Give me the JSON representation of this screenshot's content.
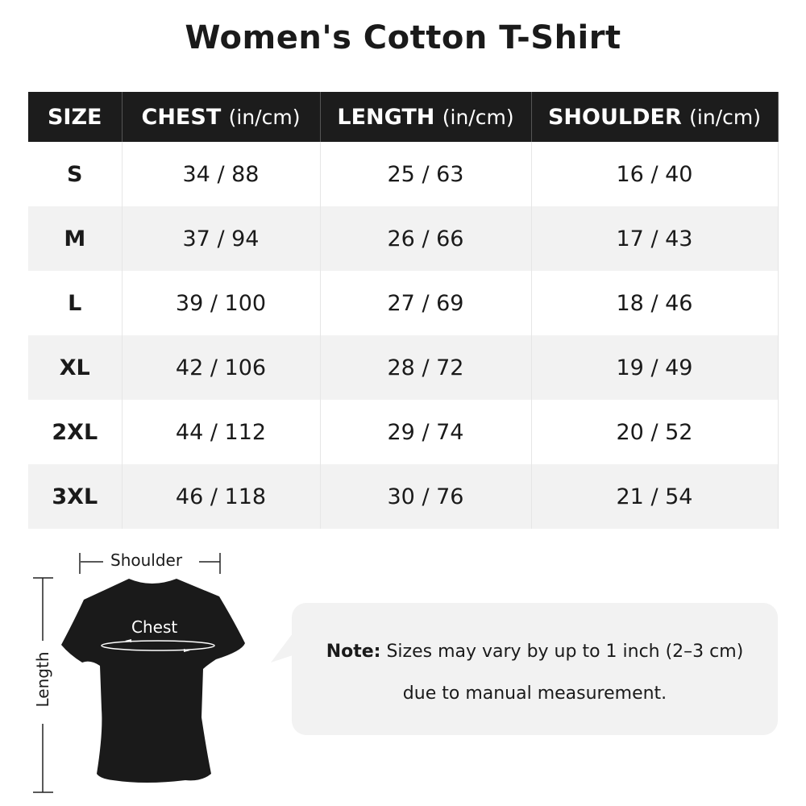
{
  "title": "Women's Cotton T-Shirt",
  "table": {
    "headers": [
      {
        "label": "SIZE",
        "unit": ""
      },
      {
        "label": "CHEST",
        "unit": "(in/cm)"
      },
      {
        "label": "LENGTH",
        "unit": "(in/cm)"
      },
      {
        "label": "SHOULDER",
        "unit": "(in/cm)"
      }
    ],
    "rows": [
      [
        "S",
        "34 / 88",
        "25 / 63",
        "16 / 40"
      ],
      [
        "M",
        "37 / 94",
        "26 / 66",
        "17 / 43"
      ],
      [
        "L",
        "39 / 100",
        "27 / 69",
        "18 / 46"
      ],
      [
        "XL",
        "42 / 106",
        "28 / 72",
        "19 / 49"
      ],
      [
        "2XL",
        "44 / 112",
        "29 / 74",
        "20 / 52"
      ],
      [
        "3XL",
        "46 / 118",
        "30 / 76",
        "21 / 54"
      ]
    ]
  },
  "diagram": {
    "shoulder": "Shoulder",
    "chest": "Chest",
    "length": "Length",
    "shirt_color": "#1a1a1a"
  },
  "note": {
    "label": "Note:",
    "line1": "Sizes may vary by up to 1 inch (2–3 cm)",
    "line2": "due to manual measurement."
  }
}
